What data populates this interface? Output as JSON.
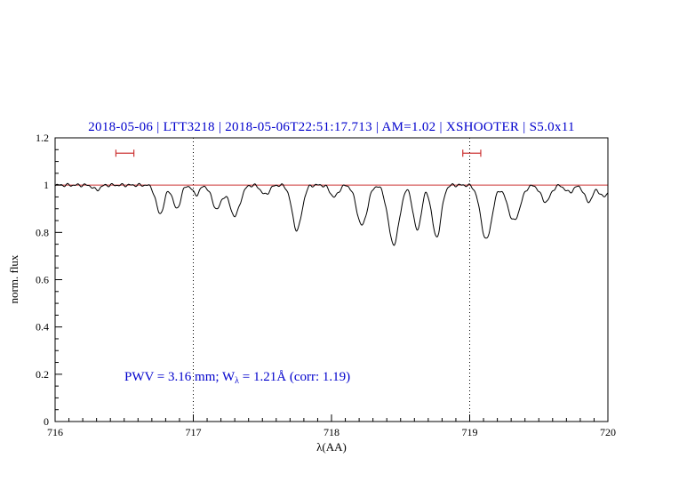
{
  "header": {
    "title": "2018-05-06 | LTT3218 | 2018-05-06T22:51:17.713 | AM=1.02 | XSHOOTER | S5.0x11",
    "title_color": "#0000cc"
  },
  "annotation": {
    "prefix": "PWV = 3.16 mm; W",
    "subscript": "λ",
    "suffix": " = 1.21Å (corr: 1.19)",
    "color": "#0000cc"
  },
  "axes": {
    "xlabel": "λ(AA)",
    "ylabel": "norm. flux",
    "xlim": [
      716,
      720
    ],
    "ylim": [
      0,
      1.2
    ],
    "x_ticks": [
      716,
      717,
      718,
      719,
      720
    ],
    "x_tick_labels": [
      "716",
      "717",
      "718",
      "719",
      "720"
    ],
    "y_ticks": [
      0,
      0.2,
      0.4,
      0.6,
      0.8,
      1,
      1.2
    ],
    "y_tick_labels": [
      "0",
      "0.2",
      "0.4",
      "0.6",
      "0.8",
      "1",
      "1.2"
    ],
    "x_minor_step": 0.1,
    "y_minor_step": 0.05
  },
  "chart_data": {
    "type": "line",
    "title": "2018-05-06 | LTT3218 | 2018-05-06T22:51:17.713 | AM=1.02 | XSHOOTER | S5.0x11",
    "xlabel": "λ(AA)",
    "ylabel": "norm. flux",
    "xlim": [
      716,
      720
    ],
    "ylim": [
      0,
      1.2
    ],
    "grid": false,
    "line_color": "#000000",
    "continuum_level": 1.0,
    "continuum_color": "#cc3333",
    "dotted_guides_x": [
      717,
      719
    ],
    "range_markers": [
      {
        "x1": 716.44,
        "x2": 716.57,
        "y": 1.135
      },
      {
        "x1": 718.95,
        "x2": 719.08,
        "y": 1.135
      }
    ],
    "absorption_lines": [
      {
        "center": 716.3,
        "depth": 0.02,
        "sigma": 0.025
      },
      {
        "center": 716.76,
        "depth": 0.12,
        "sigma": 0.03
      },
      {
        "center": 716.88,
        "depth": 0.1,
        "sigma": 0.028
      },
      {
        "center": 717.02,
        "depth": 0.04,
        "sigma": 0.025
      },
      {
        "center": 717.17,
        "depth": 0.1,
        "sigma": 0.035
      },
      {
        "center": 717.3,
        "depth": 0.13,
        "sigma": 0.038
      },
      {
        "center": 717.52,
        "depth": 0.04,
        "sigma": 0.03
      },
      {
        "center": 717.75,
        "depth": 0.19,
        "sigma": 0.035
      },
      {
        "center": 718.02,
        "depth": 0.05,
        "sigma": 0.03
      },
      {
        "center": 718.22,
        "depth": 0.17,
        "sigma": 0.038
      },
      {
        "center": 718.45,
        "depth": 0.25,
        "sigma": 0.04
      },
      {
        "center": 718.62,
        "depth": 0.19,
        "sigma": 0.03
      },
      {
        "center": 718.76,
        "depth": 0.22,
        "sigma": 0.033
      },
      {
        "center": 719.12,
        "depth": 0.23,
        "sigma": 0.04
      },
      {
        "center": 719.32,
        "depth": 0.15,
        "sigma": 0.045
      },
      {
        "center": 719.55,
        "depth": 0.07,
        "sigma": 0.035
      },
      {
        "center": 719.72,
        "depth": 0.03,
        "sigma": 0.03
      },
      {
        "center": 719.86,
        "depth": 0.07,
        "sigma": 0.03
      },
      {
        "center": 719.97,
        "depth": 0.05,
        "sigma": 0.03
      }
    ],
    "noise_amplitude": 0.004
  }
}
